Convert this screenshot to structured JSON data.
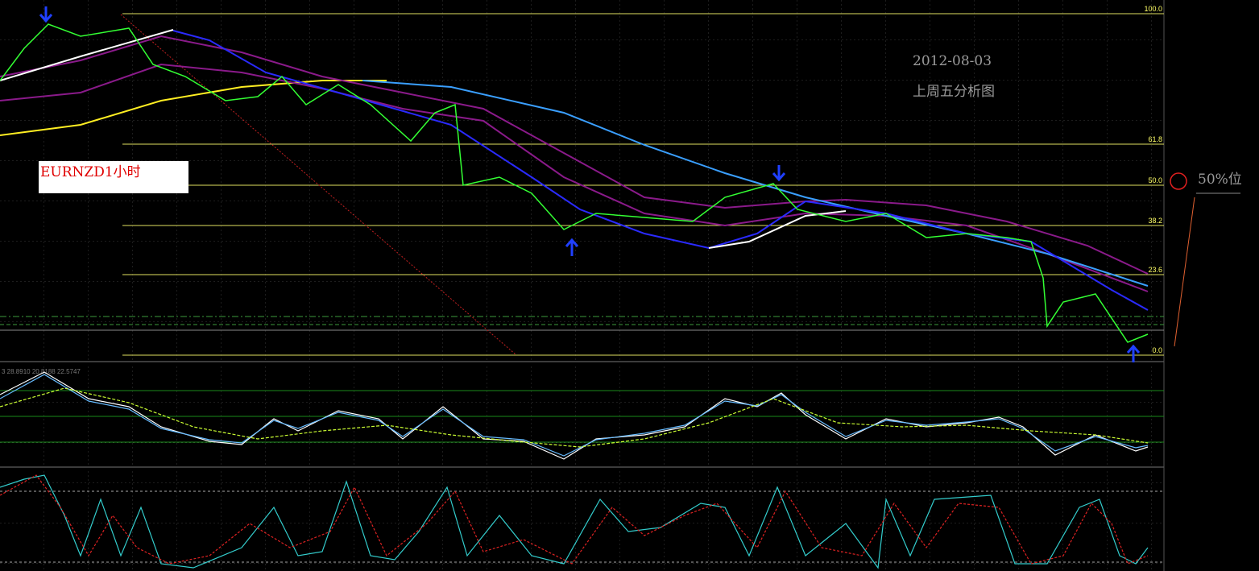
{
  "chart_window": {
    "symbol_label": "EURNZD1小时",
    "date_note": "2012-08-03",
    "caption": "上周五分析图",
    "fib_note": "50%位",
    "indicator_header": "3 28.8910 20.8188 22.5747",
    "fib_levels": [
      "100.0",
      "61.8",
      "50.0",
      "38.2",
      "23.6",
      "0.0"
    ]
  }
}
